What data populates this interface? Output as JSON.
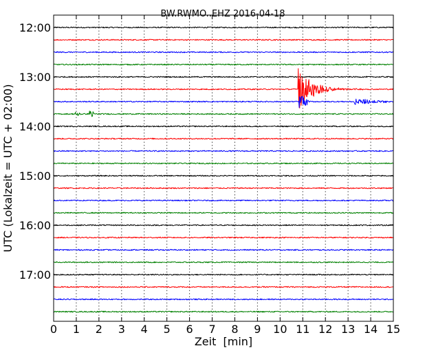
{
  "chart_data": {
    "type": "line",
    "title": "BW.RWMO..EHZ 2016-04-18",
    "xlabel": "Zeit  [min]",
    "ylabel": "UTC (Lokalzeit = UTC + 02:00)",
    "xlim": [
      0,
      15
    ],
    "xticks": [
      0,
      1,
      2,
      3,
      4,
      5,
      6,
      7,
      8,
      9,
      10,
      11,
      12,
      13,
      14,
      15
    ],
    "xtick_labels": [
      "0",
      "1",
      "2",
      "3",
      "4",
      "5",
      "6",
      "7",
      "8",
      "9",
      "10",
      "11",
      "12",
      "13",
      "14",
      "15"
    ],
    "y_tick_labels": [
      "12:00",
      "13:00",
      "14:00",
      "15:00",
      "16:00",
      "17:00"
    ],
    "grid": "vertical dotted lines at each minute",
    "traces_per_hour": 4,
    "trace_minutes": 15,
    "color_cycle": [
      "#000000",
      "#ff0000",
      "#0000ff",
      "#008000"
    ],
    "traces": [
      {
        "start": "12:00",
        "events": []
      },
      {
        "start": "12:15",
        "events": []
      },
      {
        "start": "12:30",
        "events": []
      },
      {
        "start": "12:45",
        "events": []
      },
      {
        "start": "13:00",
        "events": []
      },
      {
        "start": "13:15",
        "events": [
          {
            "minute": 10.8,
            "amplitude": 2.2,
            "duration": 3.2,
            "decay": 0.6
          }
        ]
      },
      {
        "start": "13:30",
        "events": [
          {
            "minute": 10.85,
            "amplitude": 1.1,
            "duration": 0.4,
            "decay": 0.25
          },
          {
            "minute": 13.3,
            "amplitude": 0.35,
            "duration": 1.5,
            "decay": 1.0
          }
        ]
      },
      {
        "start": "13:45",
        "events": [
          {
            "minute": 0.95,
            "amplitude": 0.45,
            "duration": 0.3,
            "decay": 0.2
          },
          {
            "minute": 1.6,
            "amplitude": 0.55,
            "duration": 0.2,
            "decay": 0.15
          }
        ]
      },
      {
        "start": "14:00",
        "events": []
      },
      {
        "start": "14:15",
        "events": []
      },
      {
        "start": "14:30",
        "events": []
      },
      {
        "start": "14:45",
        "events": []
      },
      {
        "start": "15:00",
        "events": []
      },
      {
        "start": "15:15",
        "events": []
      },
      {
        "start": "15:30",
        "events": []
      },
      {
        "start": "15:45",
        "events": []
      },
      {
        "start": "16:00",
        "events": []
      },
      {
        "start": "16:15",
        "events": []
      },
      {
        "start": "16:30",
        "events": []
      },
      {
        "start": "16:45",
        "events": []
      },
      {
        "start": "17:00",
        "events": []
      },
      {
        "start": "17:15",
        "events": []
      },
      {
        "start": "17:30",
        "events": []
      },
      {
        "start": "17:45",
        "events": []
      }
    ]
  }
}
